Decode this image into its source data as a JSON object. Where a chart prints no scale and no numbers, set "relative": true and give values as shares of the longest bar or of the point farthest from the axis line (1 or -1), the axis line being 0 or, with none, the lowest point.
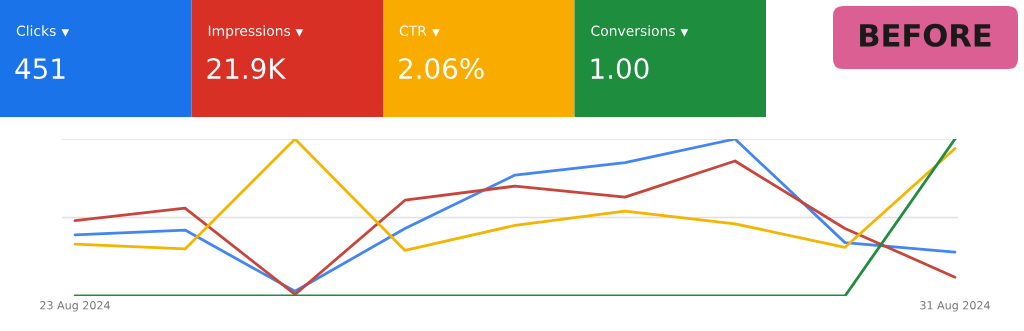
{
  "chart_data": [
    {
      "type": "other",
      "categories": [
        "Clicks",
        "Impressions",
        "CTR",
        "Conversions"
      ],
      "value_labels": [
        "451",
        "21.9K",
        "2.06%",
        "1.00"
      ],
      "colors": [
        "#1a73e8",
        "#d93025",
        "#f9ab00",
        "#1e8e3e"
      ],
      "annotations": [
        "BEFORE"
      ]
    },
    {
      "type": "line",
      "relative": true,
      "categories": [
        "23 Aug 2024",
        null,
        null,
        null,
        null,
        null,
        null,
        null,
        "31 Aug 2024"
      ],
      "tick_labels": "x",
      "ref_lines": [
        {
          "axis": "y",
          "value": 0.5,
          "color": "#e0e0e0"
        },
        {
          "axis": "y",
          "value": 1,
          "color": "#e0e0e0"
        }
      ],
      "series": [
        {
          "color": "#4285f4",
          "values": [
            0.39,
            0.42,
            0.03,
            0.43,
            0.77,
            0.85,
            1.0,
            0.34,
            0.28
          ]
        },
        {
          "color": "#c9453b",
          "values": [
            0.48,
            0.56,
            0.01,
            0.61,
            0.7,
            0.63,
            0.86,
            0.43,
            0.12
          ]
        },
        {
          "color": "#f4b400",
          "values": [
            0.33,
            0.3,
            1.0,
            0.29,
            0.45,
            0.54,
            0.46,
            0.31,
            0.94
          ]
        },
        {
          "color": "#1e8e3e",
          "values": [
            0,
            0,
            0,
            0,
            0,
            0,
            0,
            0,
            1.0
          ]
        }
      ]
    }
  ]
}
